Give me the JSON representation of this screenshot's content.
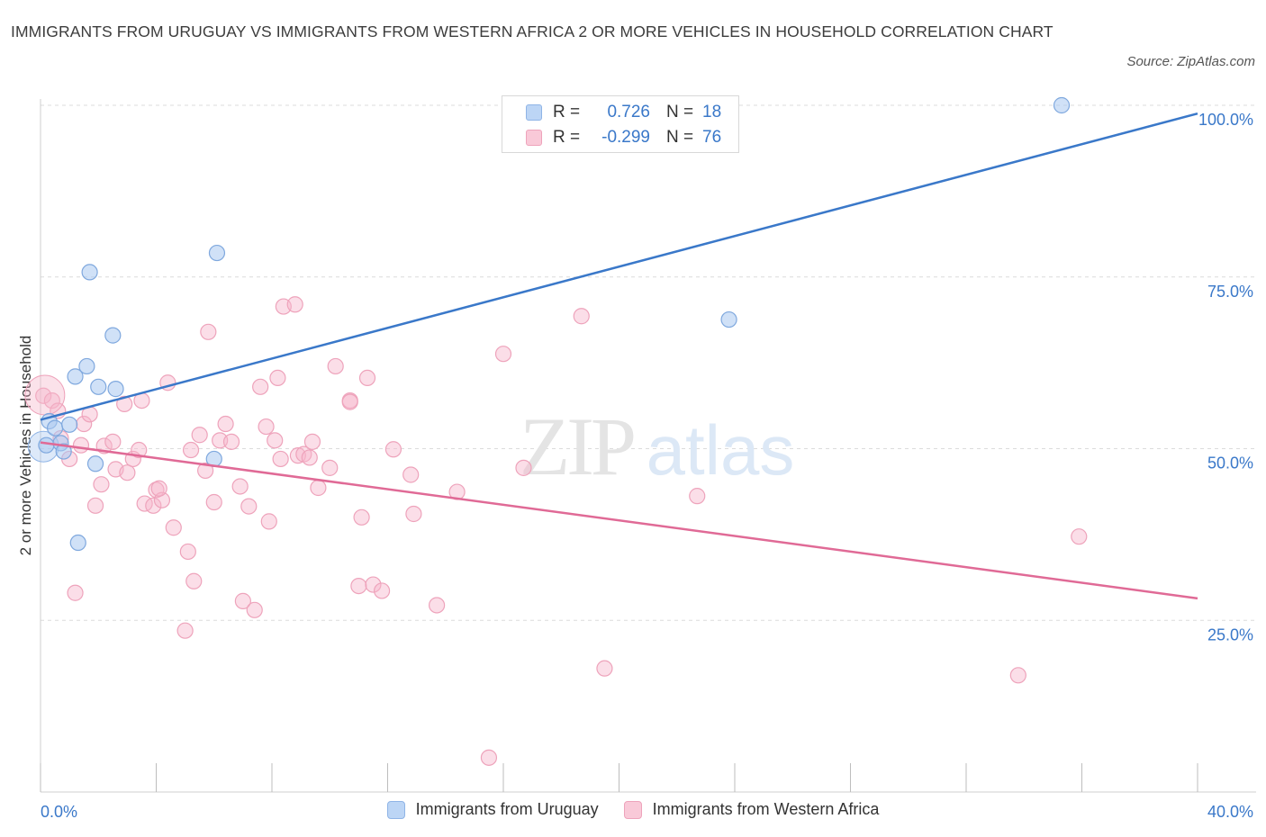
{
  "title": "IMMIGRANTS FROM URUGUAY VS IMMIGRANTS FROM WESTERN AFRICA 2 OR MORE VEHICLES IN HOUSEHOLD CORRELATION CHART",
  "source": "Source: ZipAtlas.com",
  "watermark": {
    "zip": "ZIP",
    "atlas": "atlas"
  },
  "legend_top": [
    {
      "r_label": "R =",
      "r_value": "0.726",
      "n_label": "N =",
      "n_value": "18",
      "color": "#a9c8f0"
    },
    {
      "r_label": "R =",
      "r_value": "-0.299",
      "n_label": "N =",
      "n_value": "76",
      "color": "#f6b6cb"
    }
  ],
  "legend_bottom": [
    {
      "label": "Immigrants from Uruguay",
      "color": "#a9c8f0"
    },
    {
      "label": "Immigrants from Western Africa",
      "color": "#f6b6cb"
    }
  ],
  "colors": {
    "blue_line": "#3a78c9",
    "pink_line": "#e06a96",
    "blue_fill": "#a9c8f0",
    "pink_fill": "#f6b6cb",
    "axis_text": "#3a78c9"
  },
  "chart_data": {
    "type": "scatter",
    "xlabel": "",
    "ylabel": "2 or more Vehicles in Household",
    "xlim": [
      0,
      40
    ],
    "ylim": [
      0,
      100
    ],
    "x_tick_labels": [
      "0.0%",
      "40.0%"
    ],
    "y_tick_labels": [
      "25.0%",
      "50.0%",
      "75.0%",
      "100.0%"
    ],
    "y_ticks": [
      25,
      50,
      75,
      100
    ],
    "grid": true,
    "series": [
      {
        "name": "Immigrants from Uruguay",
        "r": 0.726,
        "n": 18,
        "trend": [
          [
            0,
            54.2
          ],
          [
            40,
            98.8
          ]
        ],
        "points": [
          [
            0.2,
            50.5
          ],
          [
            0.3,
            54
          ],
          [
            0.5,
            53
          ],
          [
            0.7,
            50.8
          ],
          [
            0.8,
            49.6
          ],
          [
            1.0,
            53.5
          ],
          [
            1.2,
            60.5
          ],
          [
            1.3,
            36.3
          ],
          [
            1.6,
            62
          ],
          [
            1.7,
            75.7
          ],
          [
            1.9,
            47.8
          ],
          [
            2.0,
            59
          ],
          [
            2.5,
            66.5
          ],
          [
            2.6,
            58.7
          ],
          [
            6.0,
            48.5
          ],
          [
            6.1,
            78.5
          ],
          [
            23.8,
            68.8
          ],
          [
            35.3,
            100
          ]
        ]
      },
      {
        "name": "Immigrants from Western Africa",
        "r": -0.299,
        "n": 76,
        "trend": [
          [
            0,
            50.9
          ],
          [
            40,
            28.2
          ]
        ],
        "points": [
          [
            0.1,
            57.7
          ],
          [
            0.4,
            57
          ],
          [
            0.6,
            55.5
          ],
          [
            0.7,
            51.5
          ],
          [
            1.0,
            48.5
          ],
          [
            1.2,
            29
          ],
          [
            1.4,
            50.5
          ],
          [
            1.5,
            53.6
          ],
          [
            1.7,
            55
          ],
          [
            1.9,
            41.7
          ],
          [
            2.1,
            44.8
          ],
          [
            2.2,
            50.4
          ],
          [
            2.5,
            51
          ],
          [
            2.6,
            47
          ],
          [
            2.9,
            56.5
          ],
          [
            3.0,
            46.5
          ],
          [
            3.2,
            48.5
          ],
          [
            3.4,
            49.8
          ],
          [
            3.5,
            57
          ],
          [
            3.6,
            42
          ],
          [
            3.9,
            41.7
          ],
          [
            4.0,
            44
          ],
          [
            4.2,
            42.5
          ],
          [
            4.4,
            59.6
          ],
          [
            4.6,
            38.5
          ],
          [
            5.1,
            35
          ],
          [
            5.2,
            49.8
          ],
          [
            5.3,
            30.7
          ],
          [
            5.5,
            52
          ],
          [
            5.7,
            46.8
          ],
          [
            5.8,
            67
          ],
          [
            6.0,
            42.2
          ],
          [
            6.2,
            51.2
          ],
          [
            6.4,
            53.6
          ],
          [
            6.6,
            51
          ],
          [
            6.9,
            44.5
          ],
          [
            7.0,
            27.8
          ],
          [
            7.2,
            41.6
          ],
          [
            7.4,
            26.5
          ],
          [
            7.6,
            59
          ],
          [
            7.8,
            53.2
          ],
          [
            7.9,
            39.4
          ],
          [
            8.1,
            51.2
          ],
          [
            8.2,
            60.3
          ],
          [
            8.3,
            48.5
          ],
          [
            8.4,
            70.7
          ],
          [
            8.8,
            71
          ],
          [
            8.9,
            49
          ],
          [
            9.1,
            49.2
          ],
          [
            9.3,
            48.7
          ],
          [
            9.4,
            51
          ],
          [
            9.6,
            44.3
          ],
          [
            10.0,
            47.2
          ],
          [
            10.2,
            62
          ],
          [
            10.7,
            57
          ],
          [
            10.7,
            56.8
          ],
          [
            11.0,
            30
          ],
          [
            11.1,
            40
          ],
          [
            11.3,
            60.3
          ],
          [
            11.5,
            30.2
          ],
          [
            11.8,
            29.3
          ],
          [
            12.2,
            49.9
          ],
          [
            12.8,
            46.2
          ],
          [
            12.9,
            40.5
          ],
          [
            13.7,
            27.2
          ],
          [
            14.4,
            43.7
          ],
          [
            15.5,
            5
          ],
          [
            16.0,
            63.8
          ],
          [
            16.7,
            47.2
          ],
          [
            18.7,
            69.3
          ],
          [
            19.5,
            18
          ],
          [
            22.7,
            43.1
          ],
          [
            33.8,
            17
          ],
          [
            35.9,
            37.2
          ],
          [
            5.0,
            23.5
          ],
          [
            4.1,
            44.2
          ]
        ]
      }
    ]
  }
}
